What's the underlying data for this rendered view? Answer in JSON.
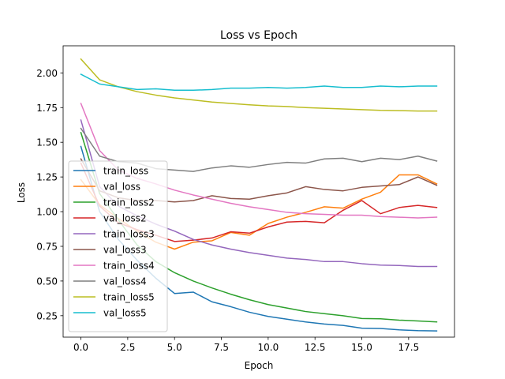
{
  "chart_data": {
    "type": "line",
    "title": "Loss vs Epoch",
    "xlabel": "Epoch",
    "ylabel": "Loss",
    "xlim": [
      -0.95,
      19.95
    ],
    "ylim": [
      0.0954,
      2.1954
    ],
    "x_ticks": [
      0.0,
      2.5,
      5.0,
      7.5,
      10.0,
      12.5,
      15.0,
      17.5
    ],
    "x_tick_labels": [
      "0.0",
      "2.5",
      "5.0",
      "7.5",
      "10.0",
      "12.5",
      "15.0",
      "17.5"
    ],
    "y_ticks": [
      0.25,
      0.5,
      0.75,
      1.0,
      1.25,
      1.5,
      1.75,
      2.0
    ],
    "y_tick_labels": [
      "0.25",
      "0.50",
      "0.75",
      "1.00",
      "1.25",
      "1.50",
      "1.75",
      "2.00"
    ],
    "grid": false,
    "legend_position": "lower-left",
    "x": [
      0,
      1,
      2,
      3,
      4,
      5,
      6,
      7,
      8,
      9,
      10,
      11,
      12,
      13,
      14,
      15,
      16,
      17,
      18,
      19
    ],
    "series": [
      {
        "name": "train_loss",
        "color": "#1f77b4",
        "values": [
          1.47,
          1.0,
          0.8,
          0.65,
          0.52,
          0.41,
          0.42,
          0.35,
          0.315,
          0.275,
          0.245,
          0.225,
          0.205,
          0.19,
          0.18,
          0.16,
          0.158,
          0.148,
          0.142,
          0.14
        ]
      },
      {
        "name": "val_loss",
        "color": "#ff7f0e",
        "values": [
          1.23,
          1.05,
          0.95,
          0.86,
          0.78,
          0.73,
          0.78,
          0.79,
          0.85,
          0.83,
          0.915,
          0.96,
          0.995,
          1.035,
          1.025,
          1.09,
          1.14,
          1.265,
          1.265,
          1.2
        ]
      },
      {
        "name": "train_loss2",
        "color": "#2ca02c",
        "values": [
          1.57,
          1.13,
          0.94,
          0.76,
          0.64,
          0.56,
          0.5,
          0.45,
          0.405,
          0.365,
          0.33,
          0.305,
          0.28,
          0.265,
          0.25,
          0.23,
          0.228,
          0.218,
          0.212,
          0.205
        ]
      },
      {
        "name": "val_loss2",
        "color": "#d62728",
        "values": [
          1.35,
          1.04,
          0.92,
          0.87,
          0.83,
          0.785,
          0.795,
          0.81,
          0.855,
          0.845,
          0.89,
          0.925,
          0.93,
          0.92,
          1.01,
          1.08,
          0.985,
          1.03,
          1.045,
          1.03
        ]
      },
      {
        "name": "train_loss3",
        "color": "#9467bd",
        "values": [
          1.66,
          1.18,
          1.04,
          0.97,
          0.91,
          0.86,
          0.8,
          0.76,
          0.73,
          0.705,
          0.685,
          0.665,
          0.655,
          0.64,
          0.64,
          0.625,
          0.615,
          0.612,
          0.605,
          0.605
        ]
      },
      {
        "name": "val_loss3",
        "color": "#8c564b",
        "values": [
          1.38,
          1.15,
          1.1,
          1.08,
          1.08,
          1.07,
          1.08,
          1.115,
          1.095,
          1.09,
          1.115,
          1.135,
          1.18,
          1.16,
          1.15,
          1.175,
          1.185,
          1.195,
          1.25,
          1.19
        ]
      },
      {
        "name": "train_loss4",
        "color": "#e377c2",
        "values": [
          1.78,
          1.44,
          1.3,
          1.24,
          1.2,
          1.155,
          1.12,
          1.09,
          1.06,
          1.035,
          1.015,
          0.995,
          0.985,
          0.98,
          0.975,
          0.975,
          0.965,
          0.96,
          0.955,
          0.96
        ]
      },
      {
        "name": "val_loss4",
        "color": "#7f7f7f",
        "values": [
          1.6,
          1.4,
          1.36,
          1.35,
          1.31,
          1.3,
          1.29,
          1.315,
          1.33,
          1.32,
          1.34,
          1.355,
          1.35,
          1.38,
          1.385,
          1.36,
          1.385,
          1.375,
          1.4,
          1.365
        ]
      },
      {
        "name": "train_loss5",
        "color": "#bcbd22",
        "values": [
          2.1,
          1.95,
          1.9,
          1.865,
          1.84,
          1.82,
          1.805,
          1.79,
          1.78,
          1.77,
          1.762,
          1.758,
          1.75,
          1.745,
          1.74,
          1.735,
          1.73,
          1.728,
          1.725,
          1.725
        ]
      },
      {
        "name": "val_loss5",
        "color": "#17becf",
        "values": [
          1.99,
          1.92,
          1.9,
          1.88,
          1.885,
          1.875,
          1.875,
          1.88,
          1.89,
          1.89,
          1.895,
          1.89,
          1.895,
          1.905,
          1.895,
          1.895,
          1.905,
          1.9,
          1.905,
          1.905
        ]
      }
    ]
  }
}
